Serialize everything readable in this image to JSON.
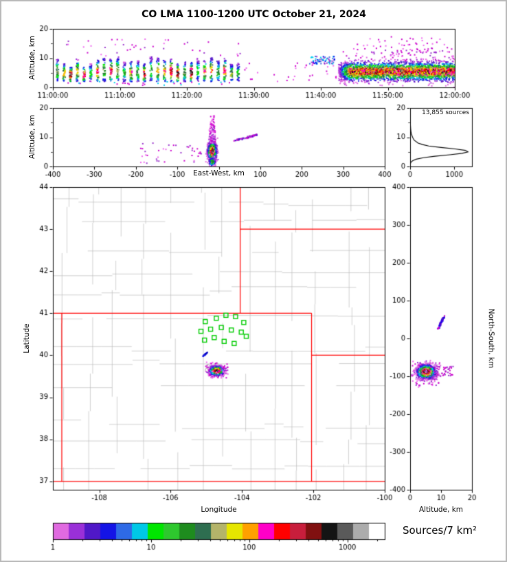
{
  "title": "CO LMA 1100-1200 UTC October 21, 2024",
  "labels": {
    "alt_top": "Altitude, km",
    "alt_ew": "Altitude, km",
    "east_west": "East-West, km",
    "latitude": "Latitude",
    "longitude": "Longitude",
    "alt_ns": "Altitude, km",
    "north_south": "North-South, km",
    "sources_count": "13,855 sources",
    "colorbar_label": "Sources/7 km²"
  },
  "chart_data": [
    {
      "id": "time_height",
      "type": "scatter",
      "ylabel": "Altitude, km",
      "xlim": [
        0,
        3600
      ],
      "xticks": {
        "values": [
          0,
          600,
          1200,
          1800,
          2400,
          3000,
          3600
        ],
        "labels": [
          "11:00:00",
          "11:10:00",
          "11:20:00",
          "11:30:00",
          "11:40:00",
          "11:50:00",
          "12:00:00"
        ]
      },
      "ylim": [
        0,
        20
      ],
      "yticks": {
        "values": [
          0,
          10,
          20
        ],
        "labels": [
          "0",
          "10",
          "20"
        ]
      },
      "yminor": [
        5,
        15
      ],
      "clusters": [
        {
          "kind": "stripes",
          "t0": 40,
          "t1": 1660,
          "step": 60,
          "y0": 2,
          "y1": 10.5,
          "per": 42
        },
        {
          "kind": "band",
          "x0": 2560,
          "x1": 3600,
          "cy": 5.4,
          "sy": 1.6,
          "n": 3000,
          "imax": 0.92,
          "ramp": 0.1
        },
        {
          "kind": "uniform",
          "x0": 2590,
          "x1": 3590,
          "y0": 9,
          "y1": 13.5,
          "n": 90,
          "colors": [
            "#cc00cc",
            "#9932cc",
            "#ee66ee"
          ]
        },
        {
          "kind": "uniform",
          "x0": 2700,
          "x1": 3550,
          "y0": 13,
          "y1": 17.5,
          "n": 35,
          "colors": [
            "#cc00cc",
            "#ee66ee"
          ]
        },
        {
          "kind": "uniform",
          "x0": 2290,
          "x1": 2540,
          "y0": 8,
          "y1": 10.6,
          "n": 60,
          "colors": [
            "#0000ee",
            "#4169e1",
            "#00ccee",
            "#9932cc"
          ]
        },
        {
          "kind": "uniform",
          "x0": 1700,
          "x1": 2540,
          "y0": 2,
          "y1": 8.5,
          "n": 30,
          "colors": [
            "#cc00cc",
            "#ee66ee"
          ]
        },
        {
          "kind": "uniform",
          "x0": 60,
          "x1": 1680,
          "y0": 10.5,
          "y1": 16.5,
          "n": 40,
          "colors": [
            "#cc00cc",
            "#ee66ee",
            "#9932cc"
          ]
        },
        {
          "kind": "uniform",
          "x0": 100,
          "x1": 1650,
          "y0": 0.6,
          "y1": 2,
          "n": 25,
          "colors": [
            "#cc00cc",
            "#00ccee"
          ]
        }
      ]
    },
    {
      "id": "ew_height",
      "type": "scatter",
      "ylabel": "Altitude, km",
      "xlabel": "East-West, km",
      "xlim": [
        -400,
        400
      ],
      "xticks": {
        "values": [
          -400,
          -300,
          -200,
          -100,
          0,
          100,
          200,
          300,
          400
        ],
        "labels": [
          "-400",
          "-300",
          "-200",
          "-100",
          "",
          "100",
          "200",
          "300",
          "400"
        ]
      },
      "ylim": [
        0,
        20
      ],
      "yticks": {
        "values": [
          0,
          10,
          20
        ],
        "labels": [
          "0",
          "10",
          "20"
        ]
      },
      "yminor": [
        5,
        15
      ],
      "clusters": [
        {
          "kind": "gauss2d",
          "cx": -16,
          "cy": 5.2,
          "sx": 5,
          "sy": 1.5,
          "n": 1400,
          "imax": 0.95
        },
        {
          "kind": "gauss2d",
          "cx": -16,
          "cy": 1.6,
          "sx": 4,
          "sy": 0.8,
          "n": 90,
          "imax": 0.5
        },
        {
          "kind": "uniform",
          "x0": -23,
          "x1": -8,
          "y0": 8,
          "y1": 14,
          "n": 70,
          "colors": [
            "#cc00cc",
            "#9932cc",
            "#ee66ee"
          ]
        },
        {
          "kind": "uniform",
          "x0": -20,
          "x1": -10,
          "y0": 14,
          "y1": 17.5,
          "n": 20,
          "colors": [
            "#cc00cc",
            "#ee66ee"
          ]
        },
        {
          "kind": "streak",
          "x0": 38,
          "y0": 8.8,
          "x1": 92,
          "y1": 10.8,
          "jx": 6,
          "jy": 0.5,
          "n": 60,
          "colors": [
            "#cc00cc",
            "#9932cc",
            "#4b0ecc"
          ]
        },
        {
          "kind": "uniform",
          "x0": -190,
          "x1": -40,
          "y0": 1,
          "y1": 8,
          "n": 40,
          "colors": [
            "#cc00cc",
            "#ee66ee",
            "#9932cc"
          ]
        }
      ]
    },
    {
      "id": "alt_histogram",
      "type": "line",
      "annotation": "13,855 sources",
      "xlim": [
        0,
        1400
      ],
      "xticks": {
        "values": [
          0,
          1000
        ],
        "labels": [
          "0",
          "1000"
        ]
      },
      "ylim": [
        0,
        20
      ],
      "yticks": {
        "values": [
          0,
          10,
          20
        ],
        "labels": [
          "0",
          "10",
          "20"
        ]
      },
      "yminor": [
        5,
        15
      ],
      "curve": {
        "alt": [
          0,
          0.5,
          1,
          1.5,
          2,
          2.5,
          3,
          3.5,
          4,
          4.5,
          5,
          5.5,
          6,
          6.5,
          7,
          7.5,
          8,
          9,
          10,
          11,
          12,
          13,
          14,
          15,
          16,
          17,
          18,
          20
        ],
        "count": [
          0,
          2,
          8,
          20,
          60,
          140,
          300,
          560,
          900,
          1180,
          1310,
          1250,
          1020,
          700,
          420,
          280,
          180,
          90,
          55,
          30,
          18,
          12,
          8,
          5,
          3,
          2,
          1,
          0
        ]
      }
    },
    {
      "id": "map",
      "type": "scatter",
      "xlabel": "Longitude",
      "ylabel": "Latitude",
      "xlim": [
        -109.3,
        -100
      ],
      "xticks": {
        "values": [
          -108,
          -106,
          -104,
          -102,
          -100
        ],
        "labels": [
          "-108",
          "-106",
          "-104",
          "-102",
          "-100"
        ]
      },
      "ylim": [
        36.8,
        44
      ],
      "yticks": {
        "values": [
          37,
          38,
          39,
          40,
          41,
          42,
          43,
          44
        ],
        "labels": [
          "37",
          "38",
          "39",
          "40",
          "41",
          "42",
          "43",
          "44"
        ]
      },
      "state_border_color": "#ff0000",
      "county_line_color": "#bcbcbc",
      "station_color": "#00cc00",
      "state_borders": [
        [
          [
            -109.3,
            37
          ],
          [
            -100,
            37
          ]
        ],
        [
          [
            -109.3,
            41
          ],
          [
            -102.05,
            41
          ]
        ],
        [
          [
            -109.05,
            37
          ],
          [
            -109.05,
            41
          ]
        ],
        [
          [
            -102.05,
            37
          ],
          [
            -102.05,
            41
          ]
        ],
        [
          [
            -104.05,
            41
          ],
          [
            -104.05,
            44
          ]
        ],
        [
          [
            -104.05,
            43
          ],
          [
            -100,
            43
          ]
        ],
        [
          [
            -102.05,
            40
          ],
          [
            -100,
            40
          ]
        ]
      ],
      "stations": [
        [
          -105.03,
          40.8
        ],
        [
          -104.72,
          40.88
        ],
        [
          -104.45,
          40.95
        ],
        [
          -104.18,
          40.92
        ],
        [
          -103.95,
          40.78
        ],
        [
          -105.15,
          40.57
        ],
        [
          -104.88,
          40.62
        ],
        [
          -104.58,
          40.66
        ],
        [
          -104.3,
          40.6
        ],
        [
          -104.02,
          40.55
        ],
        [
          -105.05,
          40.36
        ],
        [
          -104.78,
          40.42
        ],
        [
          -104.5,
          40.33
        ],
        [
          -104.22,
          40.28
        ],
        [
          -103.88,
          40.45
        ]
      ],
      "circle_markers": [
        [
          -104.95,
          39.74
        ],
        [
          -104.72,
          39.78
        ],
        [
          -104.55,
          39.7
        ],
        [
          -104.85,
          39.57
        ],
        [
          -104.62,
          39.55
        ],
        [
          -104.98,
          39.65
        ]
      ],
      "clusters": [
        {
          "kind": "gauss2d",
          "cx": -104.71,
          "cy": 39.63,
          "sx": 0.1,
          "sy": 0.055,
          "n": 1100,
          "imax": 0.93
        },
        {
          "kind": "uniform",
          "x0": -105.05,
          "x1": -104.4,
          "y0": 39.45,
          "y1": 39.85,
          "n": 40,
          "colors": [
            "#cc00cc",
            "#ee66ee"
          ]
        },
        {
          "kind": "streak",
          "x0": -105.1,
          "y0": 39.97,
          "x1": -104.98,
          "y1": 40.06,
          "jx": 0.02,
          "jy": 0.015,
          "n": 30,
          "colors": [
            "#0000bb",
            "#2222ee"
          ]
        }
      ]
    },
    {
      "id": "ns_height",
      "type": "scatter",
      "xlabel": "Altitude, km",
      "ylabel": "North-South, km",
      "xlim": [
        0,
        20
      ],
      "xticks": {
        "values": [
          0,
          10,
          20
        ],
        "labels": [
          "0",
          "10",
          "20"
        ]
      },
      "ylim": [
        -400,
        400
      ],
      "yticks": {
        "values": [
          400,
          300,
          200,
          100,
          0,
          -100,
          -200,
          -300,
          -400
        ],
        "labels": [
          "400",
          "300",
          "200",
          "100",
          "0",
          "-100",
          "-200",
          "-300",
          "-400"
        ]
      },
      "clusters": [
        {
          "kind": "gauss2d",
          "cx": 5.2,
          "cy": -88,
          "sx": 1.5,
          "sy": 9,
          "n": 1400,
          "imax": 0.95
        },
        {
          "kind": "uniform",
          "x0": 0.5,
          "x1": 10,
          "y0": -130,
          "y1": -60,
          "n": 60,
          "colors": [
            "#cc00cc",
            "#ee66ee",
            "#9932cc"
          ]
        },
        {
          "kind": "uniform",
          "x0": 8,
          "x1": 14,
          "y0": -100,
          "y1": -74,
          "n": 40,
          "colors": [
            "#cc00cc",
            "#9932cc"
          ]
        },
        {
          "kind": "streak",
          "x0": 9,
          "y0": 25,
          "x1": 11,
          "y1": 58,
          "jx": 0.6,
          "jy": 4,
          "n": 50,
          "colors": [
            "#0000ee",
            "#4b0ecc",
            "#cc00cc"
          ]
        }
      ]
    },
    {
      "id": "colorbar",
      "type": "colorbar",
      "label": "Sources/7 km²",
      "log_range": [
        0,
        3.38
      ],
      "ticks": {
        "values": [
          1,
          10,
          100,
          1000
        ],
        "labels": [
          "1",
          "10",
          "100",
          "1000"
        ]
      },
      "colors": [
        "#e06ae0",
        "#9a30d8",
        "#5018c8",
        "#1414e6",
        "#2e6ae6",
        "#00c8e6",
        "#00e600",
        "#2ec82e",
        "#1e8c1e",
        "#2e6e50",
        "#b4b46a",
        "#e6e600",
        "#ffa000",
        "#ff00c8",
        "#ff0000",
        "#c81e3c",
        "#801010",
        "#141414",
        "#5a5a5a",
        "#acacac",
        "#ffffff"
      ]
    }
  ]
}
